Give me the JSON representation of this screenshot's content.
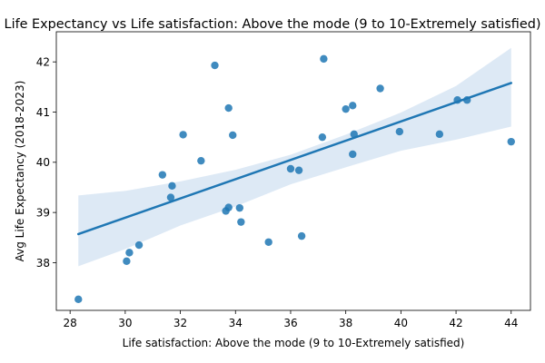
{
  "chart_data": {
    "type": "scatter",
    "title": "Life Expectancy vs Life satisfaction: Above the mode (9 to 10-Extremely satisfied)",
    "xlabel": "Life satisfaction: Above the mode (9 to 10-Extremely satisfied)",
    "ylabel": "Avg Life Expectancy (2018-2023)",
    "xlim": [
      27.5,
      44.7
    ],
    "ylim": [
      37.05,
      42.6
    ],
    "xticks": [
      28,
      30,
      32,
      34,
      36,
      38,
      40,
      42,
      44
    ],
    "yticks": [
      38,
      39,
      40,
      41,
      42
    ],
    "grid": false,
    "colors": {
      "points": "#1f77b4",
      "line": "#1f77b4",
      "band": "#c6dbef"
    },
    "points": [
      {
        "x": 28.3,
        "y": 37.27
      },
      {
        "x": 30.05,
        "y": 38.03
      },
      {
        "x": 30.15,
        "y": 38.2
      },
      {
        "x": 30.5,
        "y": 38.35
      },
      {
        "x": 31.35,
        "y": 39.75
      },
      {
        "x": 31.65,
        "y": 39.3
      },
      {
        "x": 31.7,
        "y": 39.53
      },
      {
        "x": 32.1,
        "y": 40.55
      },
      {
        "x": 32.75,
        "y": 40.03
      },
      {
        "x": 33.25,
        "y": 41.93
      },
      {
        "x": 33.65,
        "y": 39.03
      },
      {
        "x": 33.75,
        "y": 41.08
      },
      {
        "x": 33.75,
        "y": 39.1
      },
      {
        "x": 33.9,
        "y": 40.54
      },
      {
        "x": 34.15,
        "y": 39.09
      },
      {
        "x": 34.2,
        "y": 38.81
      },
      {
        "x": 35.2,
        "y": 38.41
      },
      {
        "x": 36.0,
        "y": 39.87
      },
      {
        "x": 36.3,
        "y": 39.84
      },
      {
        "x": 36.4,
        "y": 38.53
      },
      {
        "x": 37.15,
        "y": 40.5
      },
      {
        "x": 37.2,
        "y": 42.06
      },
      {
        "x": 38.0,
        "y": 41.06
      },
      {
        "x": 38.25,
        "y": 41.13
      },
      {
        "x": 38.25,
        "y": 40.16
      },
      {
        "x": 38.3,
        "y": 40.56
      },
      {
        "x": 39.25,
        "y": 41.47
      },
      {
        "x": 39.95,
        "y": 40.61
      },
      {
        "x": 41.4,
        "y": 40.56
      },
      {
        "x": 42.05,
        "y": 41.24
      },
      {
        "x": 42.4,
        "y": 41.24
      },
      {
        "x": 44.0,
        "y": 40.41
      }
    ],
    "regression": {
      "x": [
        28.3,
        44.0
      ],
      "y": [
        38.57,
        41.58
      ],
      "ci_x": [
        28.3,
        30,
        32,
        34,
        36,
        38,
        40,
        42,
        44
      ],
      "ci_upper": [
        39.34,
        39.43,
        39.62,
        39.85,
        40.15,
        40.55,
        40.99,
        41.52,
        42.28
      ],
      "ci_lower": [
        37.93,
        38.27,
        38.74,
        39.12,
        39.56,
        39.9,
        40.23,
        40.45,
        40.71
      ]
    }
  }
}
